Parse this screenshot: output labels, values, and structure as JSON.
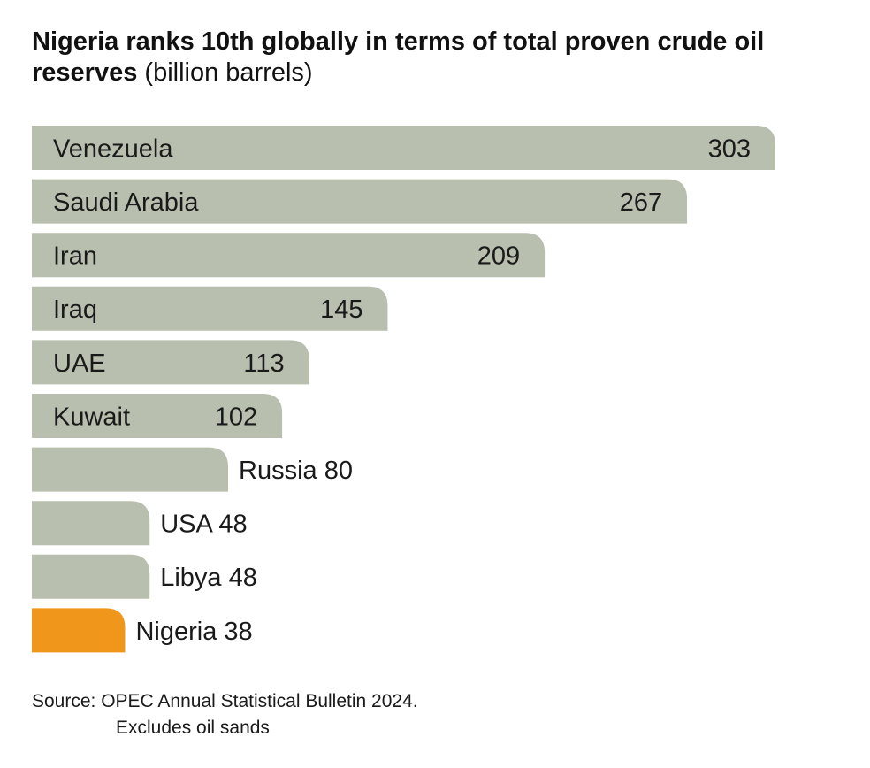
{
  "title": {
    "bold": "Nigeria ranks 10th globally in terms of total proven crude oil reserves",
    "unit": "(billion barrels)"
  },
  "colors": {
    "bar": "#b8bfae",
    "highlight": "#f0961a",
    "text": "#1a1a1a"
  },
  "chart_data": {
    "type": "bar",
    "orientation": "horizontal",
    "title": "Nigeria ranks 10th globally in terms of total proven crude oil reserves (billion barrels)",
    "categories": [
      "Venezuela",
      "Saudi Arabia",
      "Iran",
      "Iraq",
      "UAE",
      "Kuwait",
      "Russia",
      "USA",
      "Libya",
      "Nigeria"
    ],
    "values": [
      303,
      267,
      209,
      145,
      113,
      102,
      80,
      48,
      48,
      38
    ],
    "highlight": "Nigeria",
    "unit": "billion barrels",
    "xlim": [
      0,
      303
    ],
    "xlabel": "",
    "ylabel": "",
    "grid": false
  },
  "source": {
    "label": "Source: OPEC Annual Statistical Bulletin 2024.",
    "note": "Excludes oil sands"
  }
}
